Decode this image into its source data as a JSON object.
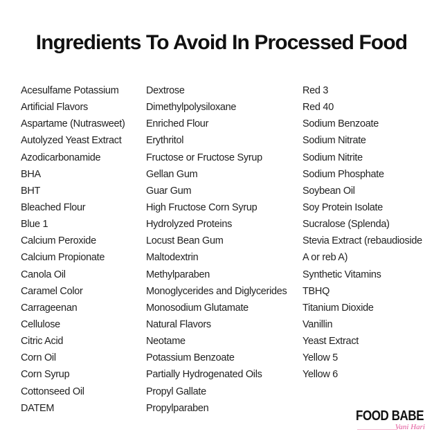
{
  "title": "Ingredients To Avoid In Processed Food",
  "columns": [
    [
      "Acesulfame Potassium",
      "Artificial Flavors",
      "Aspartame (Nutrasweet)",
      "Autolyzed Yeast Extract",
      "Azodicarbonamide",
      "BHA",
      "BHT",
      "Bleached Flour",
      "Blue 1",
      "Calcium Peroxide",
      "Calcium Propionate",
      "Canola Oil",
      "Caramel Color",
      "Carrageenan",
      "Cellulose",
      "Citric Acid",
      "Corn Oil",
      "Corn Syrup",
      "Cottonseed Oil",
      "DATEM"
    ],
    [
      "Dextrose",
      "Dimethylpolysiloxane",
      "Enriched Flour",
      "Erythritol",
      "Fructose or Fructose Syrup",
      "Gellan Gum",
      "Guar Gum",
      "High Fructose Corn Syrup",
      "Hydrolyzed Proteins",
      "Locust Bean Gum",
      "Maltodextrin",
      "Methylparaben",
      "Monoglycerides and Diglycerides",
      "Monosodium Glutamate",
      "Natural Flavors",
      "Neotame",
      "Potassium Benzoate",
      "Partially Hydrogenated Oils",
      "Propyl Gallate",
      "Propylparaben"
    ],
    [
      "Red 3",
      "Red 40",
      "Sodium Benzoate",
      "Sodium Nitrate",
      "Sodium Nitrite",
      "Sodium Phosphate",
      "Soybean Oil",
      "Soy Protein Isolate",
      "Sucralose (Splenda)",
      "Stevia Extract (rebaudioside",
      "A or reb A)",
      "Synthetic Vitamins",
      "TBHQ",
      "Titanium Dioxide",
      "Vanillin",
      "Yeast Extract",
      "Yellow 5",
      "Yellow 6"
    ]
  ],
  "logo": {
    "brand": "FOOD BABE",
    "author": "Vani Hari",
    "accent_color": "#e2579a"
  }
}
